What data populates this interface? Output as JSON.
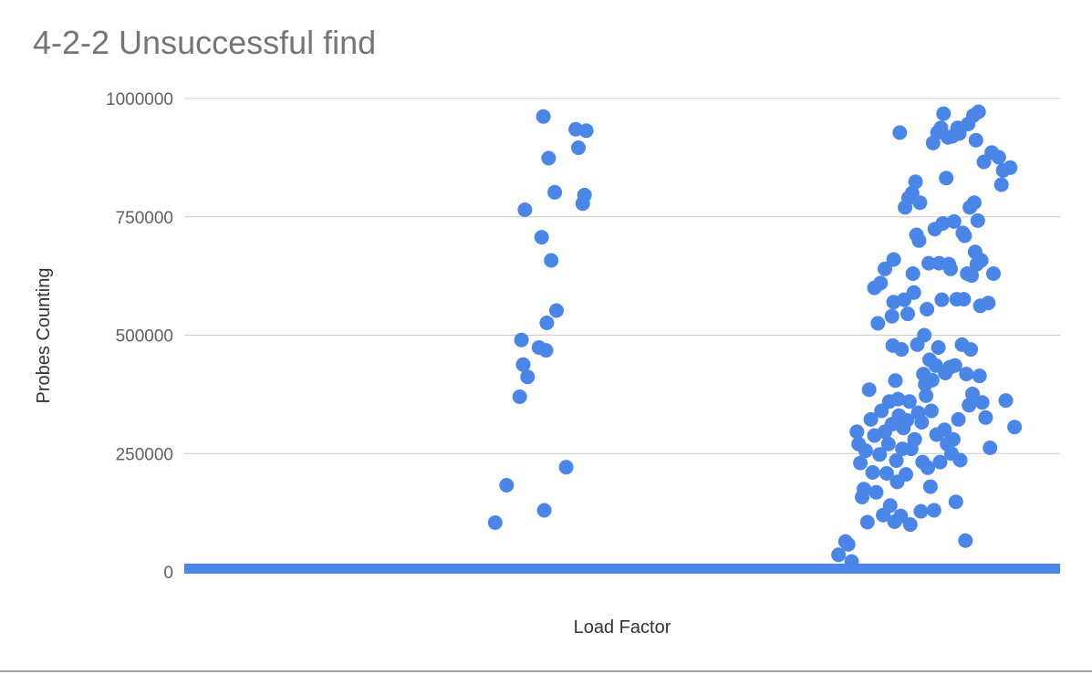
{
  "chart_data": {
    "type": "scatter",
    "title": "4-2-2 Unsuccessful find",
    "xlabel": "Load Factor",
    "ylabel": "Probes Counting",
    "ylim": [
      0,
      1000000
    ],
    "yticks": [
      0,
      250000,
      500000,
      750000,
      1000000
    ],
    "yticklabels": [
      "0",
      "250000",
      "500000",
      "750000",
      "1000000"
    ],
    "xlim": [
      0,
      1
    ],
    "grid": true,
    "legend": "none",
    "colors": {
      "marker": "#4a86e8",
      "grid": "#cccccc",
      "axis": "#333333",
      "text": "#616161",
      "title": "#757575"
    },
    "points": [
      [
        0.355,
        104000
      ],
      [
        0.368,
        183000
      ],
      [
        0.383,
        370000
      ],
      [
        0.385,
        490000
      ],
      [
        0.387,
        438000
      ],
      [
        0.389,
        765000
      ],
      [
        0.392,
        412000
      ],
      [
        0.405,
        474000
      ],
      [
        0.408,
        707000
      ],
      [
        0.411,
        130000
      ],
      [
        0.413,
        468000
      ],
      [
        0.414,
        526000
      ],
      [
        0.416,
        874000
      ],
      [
        0.419,
        658000
      ],
      [
        0.423,
        802000
      ],
      [
        0.425,
        552000
      ],
      [
        0.436,
        221000
      ],
      [
        0.41,
        962000
      ],
      [
        0.447,
        935000
      ],
      [
        0.45,
        896000
      ],
      [
        0.455,
        778000
      ],
      [
        0.457,
        796000
      ],
      [
        0.459,
        932000
      ],
      [
        0.747,
        36000
      ],
      [
        0.755,
        64000
      ],
      [
        0.758,
        58000
      ],
      [
        0.762,
        22000
      ],
      [
        0.768,
        296000
      ],
      [
        0.77,
        270000
      ],
      [
        0.772,
        230000
      ],
      [
        0.774,
        158000
      ],
      [
        0.776,
        175000
      ],
      [
        0.778,
        256000
      ],
      [
        0.78,
        105000
      ],
      [
        0.782,
        385000
      ],
      [
        0.784,
        322000
      ],
      [
        0.786,
        210000
      ],
      [
        0.788,
        600000
      ],
      [
        0.788,
        288000
      ],
      [
        0.79,
        168000
      ],
      [
        0.792,
        525000
      ],
      [
        0.794,
        248000
      ],
      [
        0.795,
        610000
      ],
      [
        0.796,
        340000
      ],
      [
        0.798,
        120000
      ],
      [
        0.8,
        296000
      ],
      [
        0.8,
        640000
      ],
      [
        0.802,
        208000
      ],
      [
        0.804,
        270000
      ],
      [
        0.805,
        360000
      ],
      [
        0.806,
        140000
      ],
      [
        0.808,
        312000
      ],
      [
        0.808,
        540000
      ],
      [
        0.809,
        478000
      ],
      [
        0.81,
        570000
      ],
      [
        0.81,
        660000
      ],
      [
        0.811,
        106000
      ],
      [
        0.812,
        404000
      ],
      [
        0.813,
        235000
      ],
      [
        0.814,
        190000
      ],
      [
        0.815,
        365000
      ],
      [
        0.816,
        330000
      ],
      [
        0.817,
        928000
      ],
      [
        0.818,
        118000
      ],
      [
        0.819,
        470000
      ],
      [
        0.82,
        260000
      ],
      [
        0.821,
        304000
      ],
      [
        0.822,
        575000
      ],
      [
        0.823,
        770000
      ],
      [
        0.824,
        206000
      ],
      [
        0.825,
        320000
      ],
      [
        0.826,
        545000
      ],
      [
        0.827,
        790000
      ],
      [
        0.828,
        360000
      ],
      [
        0.829,
        100000
      ],
      [
        0.83,
        260000
      ],
      [
        0.831,
        800000
      ],
      [
        0.832,
        630000
      ],
      [
        0.833,
        590000
      ],
      [
        0.834,
        280000
      ],
      [
        0.835,
        824000
      ],
      [
        0.836,
        712000
      ],
      [
        0.837,
        480000
      ],
      [
        0.838,
        336000
      ],
      [
        0.839,
        700000
      ],
      [
        0.84,
        780000
      ],
      [
        0.841,
        128000
      ],
      [
        0.842,
        316000
      ],
      [
        0.843,
        232000
      ],
      [
        0.844,
        418000
      ],
      [
        0.845,
        500000
      ],
      [
        0.846,
        396000
      ],
      [
        0.847,
        372000
      ],
      [
        0.848,
        555000
      ],
      [
        0.849,
        220000
      ],
      [
        0.85,
        652000
      ],
      [
        0.851,
        448000
      ],
      [
        0.852,
        180000
      ],
      [
        0.853,
        340000
      ],
      [
        0.854,
        405000
      ],
      [
        0.855,
        906000
      ],
      [
        0.856,
        130000
      ],
      [
        0.857,
        724000
      ],
      [
        0.858,
        436000
      ],
      [
        0.859,
        290000
      ],
      [
        0.86,
        928000
      ],
      [
        0.861,
        474000
      ],
      [
        0.862,
        652000
      ],
      [
        0.863,
        232000
      ],
      [
        0.864,
        938000
      ],
      [
        0.865,
        575000
      ],
      [
        0.866,
        736000
      ],
      [
        0.867,
        968000
      ],
      [
        0.868,
        300000
      ],
      [
        0.869,
        420000
      ],
      [
        0.87,
        832000
      ],
      [
        0.871,
        270000
      ],
      [
        0.872,
        918000
      ],
      [
        0.873,
        650000
      ],
      [
        0.874,
        432000
      ],
      [
        0.875,
        640000
      ],
      [
        0.876,
        250000
      ],
      [
        0.877,
        920000
      ],
      [
        0.878,
        280000
      ],
      [
        0.879,
        740000
      ],
      [
        0.88,
        436000
      ],
      [
        0.881,
        148000
      ],
      [
        0.882,
        576000
      ],
      [
        0.883,
        938000
      ],
      [
        0.884,
        322000
      ],
      [
        0.885,
        926000
      ],
      [
        0.886,
        236000
      ],
      [
        0.888,
        480000
      ],
      [
        0.889,
        716000
      ],
      [
        0.89,
        576000
      ],
      [
        0.891,
        710000
      ],
      [
        0.892,
        66000
      ],
      [
        0.893,
        418000
      ],
      [
        0.894,
        630000
      ],
      [
        0.895,
        946000
      ],
      [
        0.896,
        352000
      ],
      [
        0.897,
        770000
      ],
      [
        0.898,
        470000
      ],
      [
        0.899,
        626000
      ],
      [
        0.9,
        376000
      ],
      [
        0.901,
        964000
      ],
      [
        0.902,
        780000
      ],
      [
        0.903,
        676000
      ],
      [
        0.904,
        912000
      ],
      [
        0.905,
        650000
      ],
      [
        0.906,
        742000
      ],
      [
        0.907,
        972000
      ],
      [
        0.908,
        414000
      ],
      [
        0.909,
        562000
      ],
      [
        0.91,
        658000
      ],
      [
        0.911,
        358000
      ],
      [
        0.913,
        866000
      ],
      [
        0.915,
        326000
      ],
      [
        0.918,
        568000
      ],
      [
        0.92,
        262000
      ],
      [
        0.922,
        886000
      ],
      [
        0.924,
        630000
      ],
      [
        0.93,
        876000
      ],
      [
        0.933,
        818000
      ],
      [
        0.935,
        848000
      ],
      [
        0.938,
        362000
      ],
      [
        0.943,
        854000
      ],
      [
        0.948,
        306000
      ]
    ]
  }
}
